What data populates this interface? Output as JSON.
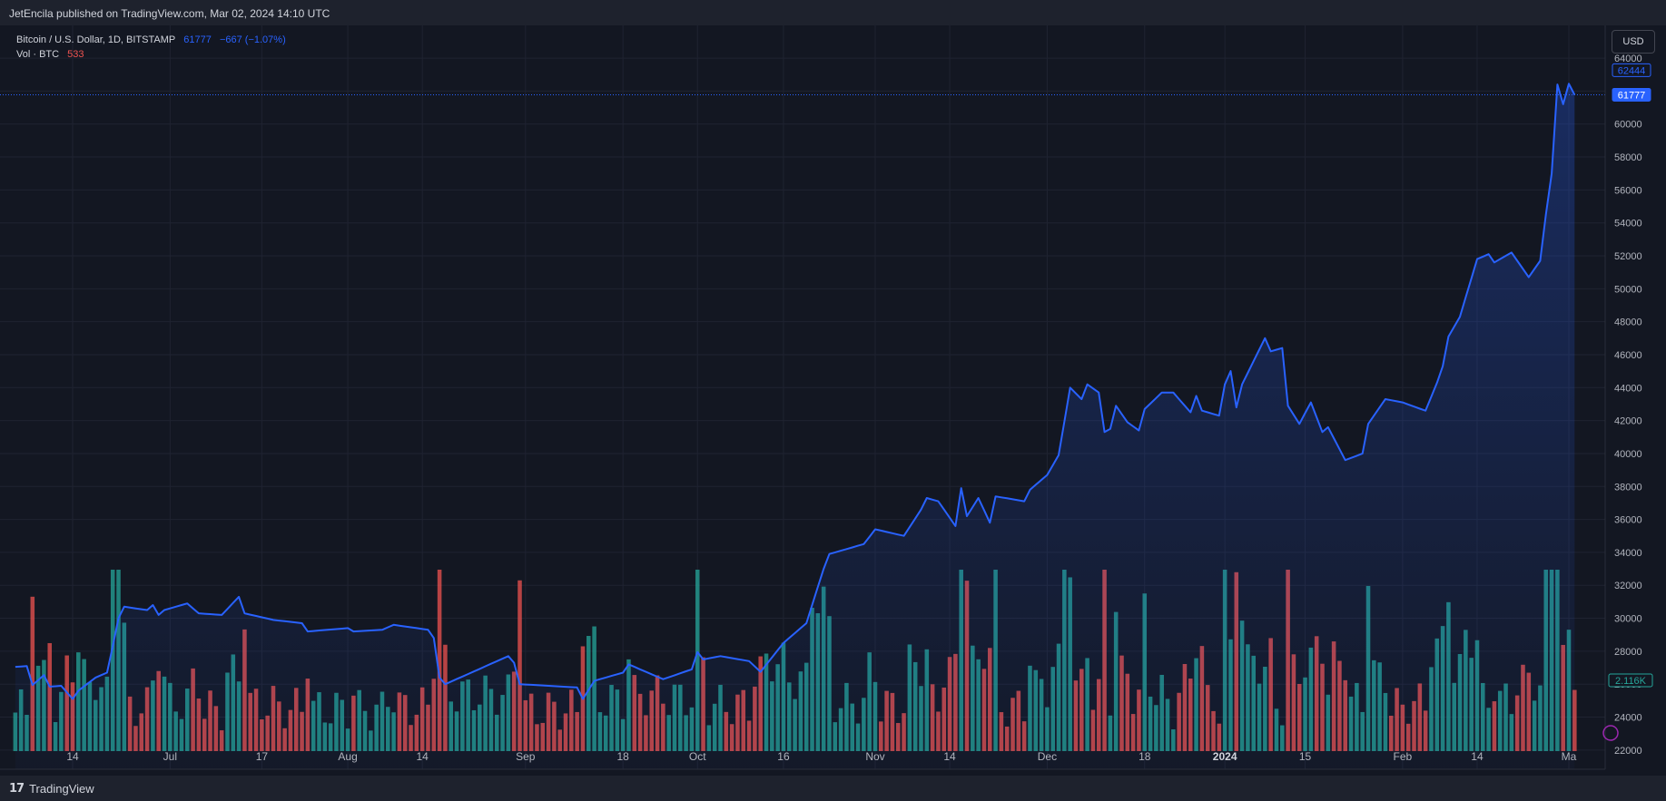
{
  "header": {
    "publisher_line": "JetEncila published on TradingView.com, Mar 02, 2024 14:10 UTC"
  },
  "legend": {
    "symbol": "Bitcoin / U.S. Dollar, 1D, BITSTAMP",
    "last_price": "61777",
    "change": "−667 (−1.07%)",
    "volume_label": "Vol · BTC",
    "volume_value": "533"
  },
  "currency_button": "USD",
  "footer": {
    "brand": "TradingView",
    "logo_text": "17"
  },
  "colors": {
    "line": "#2962ff",
    "up_volume": "#26a69a",
    "down_volume": "#ef5350",
    "background": "#131722"
  },
  "chart_data": {
    "type": "area",
    "title": "Bitcoin / U.S. Dollar, 1D, BITSTAMP",
    "x_ticks": [
      "14",
      "Jul",
      "17",
      "Aug",
      "14",
      "Sep",
      "18",
      "Oct",
      "16",
      "Nov",
      "14",
      "Dec",
      "18",
      "2024",
      "15",
      "Feb",
      "14",
      "Ma"
    ],
    "y_ticks": [
      22000,
      24000,
      26000,
      28000,
      30000,
      32000,
      34000,
      36000,
      38000,
      40000,
      42000,
      44000,
      46000,
      48000,
      50000,
      52000,
      54000,
      56000,
      58000,
      60000,
      62000,
      64000
    ],
    "ylim": [
      21000,
      64500
    ],
    "grid": true,
    "price_badges": [
      {
        "label": "62444",
        "value": 62444
      },
      {
        "label": "61777",
        "value": 61777
      }
    ],
    "volume_badge": "2.116K",
    "price_anchors": [
      {
        "date": "2023-06-04",
        "close": 27050
      },
      {
        "date": "2023-06-06",
        "close": 27100
      },
      {
        "date": "2023-06-07",
        "close": 25950
      },
      {
        "date": "2023-06-09",
        "close": 26550
      },
      {
        "date": "2023-06-10",
        "close": 25850
      },
      {
        "date": "2023-06-12",
        "close": 25900
      },
      {
        "date": "2023-06-14",
        "close": 25100
      },
      {
        "date": "2023-06-15",
        "close": 25600
      },
      {
        "date": "2023-06-18",
        "close": 26400
      },
      {
        "date": "2023-06-20",
        "close": 26700
      },
      {
        "date": "2023-06-21",
        "close": 28300
      },
      {
        "date": "2023-06-22",
        "close": 30000
      },
      {
        "date": "2023-06-23",
        "close": 30700
      },
      {
        "date": "2023-06-27",
        "close": 30500
      },
      {
        "date": "2023-06-28",
        "close": 30800
      },
      {
        "date": "2023-06-29",
        "close": 30200
      },
      {
        "date": "2023-06-30",
        "close": 30500
      },
      {
        "date": "2023-07-04",
        "close": 30900
      },
      {
        "date": "2023-07-06",
        "close": 30300
      },
      {
        "date": "2023-07-10",
        "close": 30200
      },
      {
        "date": "2023-07-13",
        "close": 31300
      },
      {
        "date": "2023-07-14",
        "close": 30300
      },
      {
        "date": "2023-07-19",
        "close": 29900
      },
      {
        "date": "2023-07-24",
        "close": 29700
      },
      {
        "date": "2023-07-25",
        "close": 29200
      },
      {
        "date": "2023-08-01",
        "close": 29400
      },
      {
        "date": "2023-08-02",
        "close": 29200
      },
      {
        "date": "2023-08-07",
        "close": 29300
      },
      {
        "date": "2023-08-09",
        "close": 29600
      },
      {
        "date": "2023-08-15",
        "close": 29300
      },
      {
        "date": "2023-08-16",
        "close": 28800
      },
      {
        "date": "2023-08-17",
        "close": 26400
      },
      {
        "date": "2023-08-18",
        "close": 26000
      },
      {
        "date": "2023-08-29",
        "close": 27700
      },
      {
        "date": "2023-08-30",
        "close": 27300
      },
      {
        "date": "2023-08-31",
        "close": 26000
      },
      {
        "date": "2023-09-10",
        "close": 25800
      },
      {
        "date": "2023-09-11",
        "close": 25100
      },
      {
        "date": "2023-09-13",
        "close": 26200
      },
      {
        "date": "2023-09-18",
        "close": 26700
      },
      {
        "date": "2023-09-19",
        "close": 27200
      },
      {
        "date": "2023-09-25",
        "close": 26300
      },
      {
        "date": "2023-09-30",
        "close": 26900
      },
      {
        "date": "2023-10-01",
        "close": 27950
      },
      {
        "date": "2023-10-02",
        "close": 27500
      },
      {
        "date": "2023-10-05",
        "close": 27700
      },
      {
        "date": "2023-10-10",
        "close": 27400
      },
      {
        "date": "2023-10-12",
        "close": 26750
      },
      {
        "date": "2023-10-16",
        "close": 28500
      },
      {
        "date": "2023-10-20",
        "close": 29700
      },
      {
        "date": "2023-10-23",
        "close": 33000
      },
      {
        "date": "2023-10-24",
        "close": 33900
      },
      {
        "date": "2023-10-30",
        "close": 34500
      },
      {
        "date": "2023-11-01",
        "close": 35400
      },
      {
        "date": "2023-11-06",
        "close": 35000
      },
      {
        "date": "2023-11-09",
        "close": 36600
      },
      {
        "date": "2023-11-10",
        "close": 37300
      },
      {
        "date": "2023-11-12",
        "close": 37100
      },
      {
        "date": "2023-11-15",
        "close": 35600
      },
      {
        "date": "2023-11-16",
        "close": 37900
      },
      {
        "date": "2023-11-17",
        "close": 36200
      },
      {
        "date": "2023-11-19",
        "close": 37300
      },
      {
        "date": "2023-11-21",
        "close": 35800
      },
      {
        "date": "2023-11-22",
        "close": 37400
      },
      {
        "date": "2023-11-27",
        "close": 37100
      },
      {
        "date": "2023-11-28",
        "close": 37800
      },
      {
        "date": "2023-12-01",
        "close": 38700
      },
      {
        "date": "2023-12-03",
        "close": 39900
      },
      {
        "date": "2023-12-05",
        "close": 44000
      },
      {
        "date": "2023-12-07",
        "close": 43300
      },
      {
        "date": "2023-12-08",
        "close": 44200
      },
      {
        "date": "2023-12-10",
        "close": 43700
      },
      {
        "date": "2023-12-11",
        "close": 41300
      },
      {
        "date": "2023-12-12",
        "close": 41500
      },
      {
        "date": "2023-12-13",
        "close": 42900
      },
      {
        "date": "2023-12-15",
        "close": 41900
      },
      {
        "date": "2023-12-17",
        "close": 41400
      },
      {
        "date": "2023-12-18",
        "close": 42700
      },
      {
        "date": "2023-12-21",
        "close": 43700
      },
      {
        "date": "2023-12-23",
        "close": 43700
      },
      {
        "date": "2023-12-26",
        "close": 42500
      },
      {
        "date": "2023-12-27",
        "close": 43500
      },
      {
        "date": "2023-12-28",
        "close": 42600
      },
      {
        "date": "2023-12-31",
        "close": 42300
      },
      {
        "date": "2024-01-01",
        "close": 44200
      },
      {
        "date": "2024-01-02",
        "close": 45000
      },
      {
        "date": "2024-01-03",
        "close": 42800
      },
      {
        "date": "2024-01-04",
        "close": 44200
      },
      {
        "date": "2024-01-08",
        "close": 47000
      },
      {
        "date": "2024-01-09",
        "close": 46200
      },
      {
        "date": "2024-01-11",
        "close": 46400
      },
      {
        "date": "2024-01-12",
        "close": 42900
      },
      {
        "date": "2024-01-14",
        "close": 41800
      },
      {
        "date": "2024-01-16",
        "close": 43100
      },
      {
        "date": "2024-01-18",
        "close": 41300
      },
      {
        "date": "2024-01-19",
        "close": 41600
      },
      {
        "date": "2024-01-22",
        "close": 39600
      },
      {
        "date": "2024-01-25",
        "close": 40000
      },
      {
        "date": "2024-01-26",
        "close": 41800
      },
      {
        "date": "2024-01-29",
        "close": 43300
      },
      {
        "date": "2024-02-01",
        "close": 43100
      },
      {
        "date": "2024-02-05",
        "close": 42600
      },
      {
        "date": "2024-02-07",
        "close": 44300
      },
      {
        "date": "2024-02-08",
        "close": 45300
      },
      {
        "date": "2024-02-09",
        "close": 47100
      },
      {
        "date": "2024-02-11",
        "close": 48300
      },
      {
        "date": "2024-02-14",
        "close": 51800
      },
      {
        "date": "2024-02-16",
        "close": 52100
      },
      {
        "date": "2024-02-17",
        "close": 51600
      },
      {
        "date": "2024-02-20",
        "close": 52200
      },
      {
        "date": "2024-02-23",
        "close": 50700
      },
      {
        "date": "2024-02-25",
        "close": 51700
      },
      {
        "date": "2024-02-26",
        "close": 54500
      },
      {
        "date": "2024-02-27",
        "close": 57000
      },
      {
        "date": "2024-02-28",
        "close": 62400
      },
      {
        "date": "2024-02-29",
        "close": 61200
      },
      {
        "date": "2024-03-01",
        "close": 62444
      },
      {
        "date": "2024-03-02",
        "close": 61777
      }
    ]
  }
}
